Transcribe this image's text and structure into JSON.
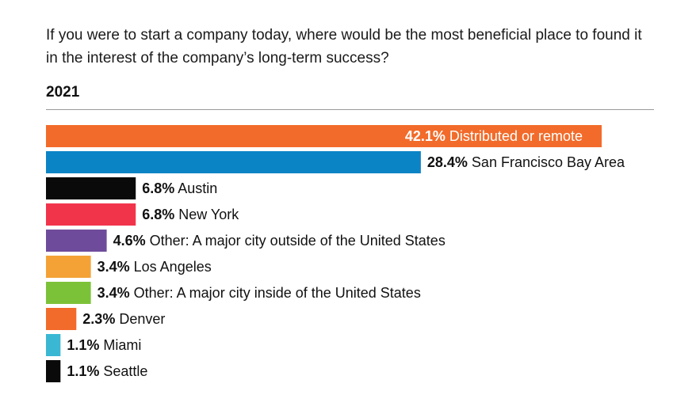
{
  "question": "If you were to start a company today, where would be the most beneficial place to found it in the interest of the company’s long-term success?",
  "year": "2021",
  "chart_data": {
    "type": "bar",
    "orientation": "horizontal",
    "categories": [
      "Distributed or remote",
      "San Francisco Bay Area",
      "Austin",
      "New York",
      "Other: A major city outside of the United States",
      "Los Angeles",
      "Other: A major city inside of the United States",
      "Denver",
      "Miami",
      "Seattle"
    ],
    "values": [
      42.1,
      28.4,
      6.8,
      6.8,
      4.6,
      3.4,
      3.4,
      2.3,
      1.1,
      1.1
    ],
    "value_labels": [
      "42.1%",
      "28.4%",
      "6.8%",
      "6.8%",
      "4.6%",
      "3.4%",
      "3.4%",
      "2.3%",
      "1.1%",
      "1.1%"
    ],
    "colors": [
      "#f26b2a",
      "#0b84c6",
      "#0a0a0a",
      "#f2344b",
      "#6f4c9b",
      "#f4a236",
      "#7cc238",
      "#f26b2a",
      "#3ab8d3",
      "#0a0a0a"
    ],
    "title": "",
    "xlabel": "",
    "ylabel": "",
    "xlim": [
      0,
      42.1
    ],
    "grid": false,
    "legend": "none"
  }
}
